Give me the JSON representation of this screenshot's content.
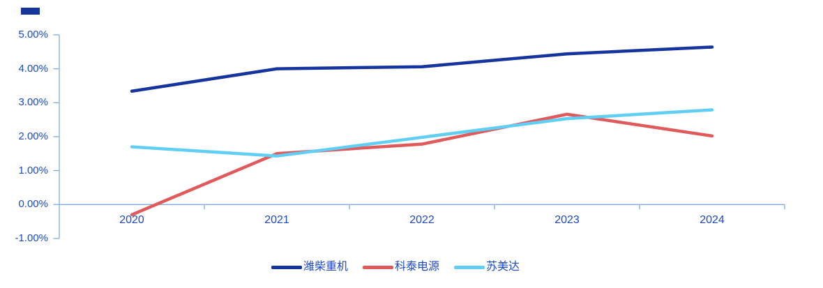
{
  "decor": {
    "marker_color": "#16349E"
  },
  "chart_data": {
    "type": "line",
    "title": "",
    "categories": [
      "2020",
      "2021",
      "2022",
      "2023",
      "2024"
    ],
    "series": [
      {
        "name": "潍柴重机",
        "color": "#16349E",
        "values": [
          3.34,
          4.0,
          4.06,
          4.44,
          4.64
        ]
      },
      {
        "name": "科泰电源",
        "color": "#E05A5C",
        "values": [
          -0.3,
          1.5,
          1.78,
          2.66,
          2.02
        ]
      },
      {
        "name": "苏美达",
        "color": "#61CEF4",
        "values": [
          1.7,
          1.43,
          1.98,
          2.53,
          2.79
        ]
      }
    ],
    "y_ticks": [
      {
        "label": "5.00%",
        "value": 5
      },
      {
        "label": "4.00%",
        "value": 4
      },
      {
        "label": "3.00%",
        "value": 3
      },
      {
        "label": "2.00%",
        "value": 2
      },
      {
        "label": "1.00%",
        "value": 1
      },
      {
        "label": "0.00%",
        "value": 0
      },
      {
        "label": "-1.00%",
        "value": -1
      }
    ],
    "ylim": [
      -1,
      5
    ],
    "grid": false,
    "legend_position": "bottom",
    "axis_color": "#7EAEE4",
    "label_color": "#1D49C8"
  }
}
